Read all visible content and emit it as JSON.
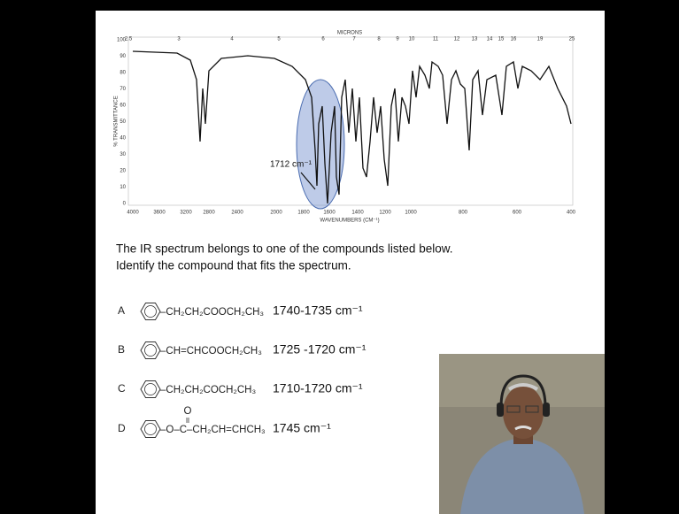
{
  "spectrum": {
    "top_axis_label": "MICRONS",
    "top_ticks": [
      "2.5",
      "3",
      "4",
      "5",
      "6",
      "7",
      "8",
      "9",
      "10",
      "11",
      "12",
      "13",
      "14",
      "15",
      "16",
      "19",
      "25"
    ],
    "bottom_ticks": [
      "4000",
      "3600",
      "3200",
      "2800",
      "2400",
      "2000",
      "1800",
      "1600",
      "1400",
      "1200",
      "1000",
      "800",
      "600",
      "400"
    ],
    "bottom_axis_label": "WAVENUMBERS (CM⁻¹)",
    "y_ticks": [
      "0",
      "10",
      "20",
      "30",
      "40",
      "50",
      "60",
      "70",
      "80",
      "90",
      "100"
    ],
    "y_axis_label": "% TRANSMITTANCE",
    "annotation": "1712 cm⁻¹"
  },
  "question": [
    "The IR spectrum belongs to one of the compounds listed below.",
    "Identify the compound that fits the spectrum."
  ],
  "options": [
    {
      "letter": "A",
      "formula": "–CH₂CH₂COOCH₂CH₃",
      "range": "1740-1735 cm⁻¹"
    },
    {
      "letter": "B",
      "formula": "–CH=CHCOOCH₂CH₃",
      "range": "1725 -1720 cm⁻¹"
    },
    {
      "letter": "C",
      "formula": "–CH₂CH₂COCH₂CH₃",
      "range": "1710-1720 cm⁻¹"
    },
    {
      "letter": "D",
      "formula": "–O–C–CH₂CH=CHCH₃",
      "carbonyl": "O",
      "range": "1745 cm⁻¹"
    }
  ]
}
